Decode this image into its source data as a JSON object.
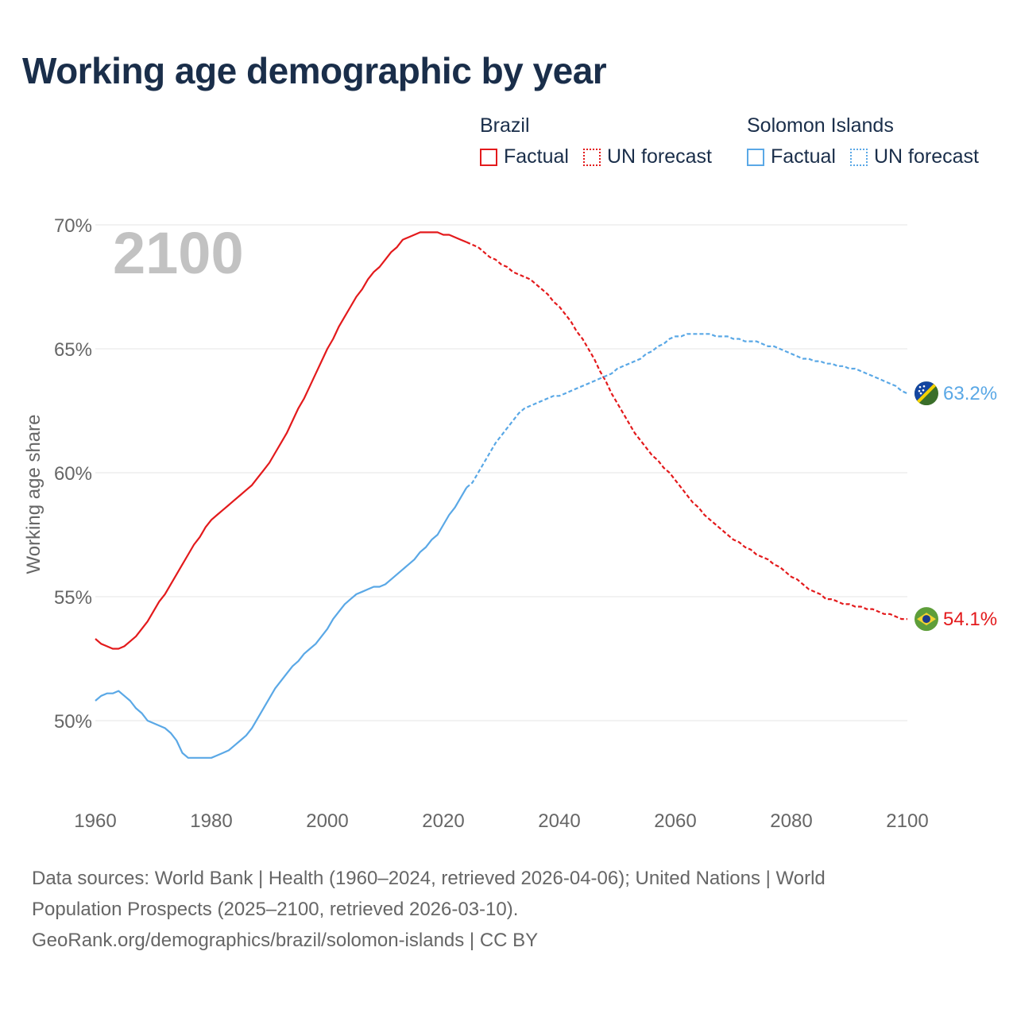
{
  "title": "Working age demographic by year",
  "chart_data": {
    "type": "line",
    "year_label": "2100",
    "ylabel": "Working age share",
    "xlim": [
      1960,
      2100
    ],
    "ylim": [
      47,
      71
    ],
    "y_ticks": [
      {
        "value": 50,
        "label": "50%"
      },
      {
        "value": 55,
        "label": "55%"
      },
      {
        "value": 60,
        "label": "60%"
      },
      {
        "value": 65,
        "label": "65%"
      },
      {
        "value": 70,
        "label": "70%"
      }
    ],
    "x_ticks": [
      {
        "value": 1960,
        "label": "1960"
      },
      {
        "value": 1980,
        "label": "1980"
      },
      {
        "value": 2000,
        "label": "2000"
      },
      {
        "value": 2020,
        "label": "2020"
      },
      {
        "value": 2040,
        "label": "2040"
      },
      {
        "value": 2060,
        "label": "2060"
      },
      {
        "value": 2080,
        "label": "2080"
      },
      {
        "value": 2100,
        "label": "2100"
      }
    ],
    "factual_end_year": 2024,
    "series": [
      {
        "name": "Brazil",
        "color": "#e31a1c",
        "end_label": "54.1%",
        "points": [
          [
            1960,
            53.3
          ],
          [
            1961,
            53.1
          ],
          [
            1962,
            53.0
          ],
          [
            1963,
            52.9
          ],
          [
            1964,
            52.9
          ],
          [
            1965,
            53.0
          ],
          [
            1966,
            53.2
          ],
          [
            1967,
            53.4
          ],
          [
            1968,
            53.7
          ],
          [
            1969,
            54.0
          ],
          [
            1970,
            54.4
          ],
          [
            1971,
            54.8
          ],
          [
            1972,
            55.1
          ],
          [
            1973,
            55.5
          ],
          [
            1974,
            55.9
          ],
          [
            1975,
            56.3
          ],
          [
            1976,
            56.7
          ],
          [
            1977,
            57.1
          ],
          [
            1978,
            57.4
          ],
          [
            1979,
            57.8
          ],
          [
            1980,
            58.1
          ],
          [
            1981,
            58.3
          ],
          [
            1982,
            58.5
          ],
          [
            1983,
            58.7
          ],
          [
            1984,
            58.9
          ],
          [
            1985,
            59.1
          ],
          [
            1986,
            59.3
          ],
          [
            1987,
            59.5
          ],
          [
            1988,
            59.8
          ],
          [
            1989,
            60.1
          ],
          [
            1990,
            60.4
          ],
          [
            1991,
            60.8
          ],
          [
            1992,
            61.2
          ],
          [
            1993,
            61.6
          ],
          [
            1994,
            62.1
          ],
          [
            1995,
            62.6
          ],
          [
            1996,
            63.0
          ],
          [
            1997,
            63.5
          ],
          [
            1998,
            64.0
          ],
          [
            1999,
            64.5
          ],
          [
            2000,
            65.0
          ],
          [
            2001,
            65.4
          ],
          [
            2002,
            65.9
          ],
          [
            2003,
            66.3
          ],
          [
            2004,
            66.7
          ],
          [
            2005,
            67.1
          ],
          [
            2006,
            67.4
          ],
          [
            2007,
            67.8
          ],
          [
            2008,
            68.1
          ],
          [
            2009,
            68.3
          ],
          [
            2010,
            68.6
          ],
          [
            2011,
            68.9
          ],
          [
            2012,
            69.1
          ],
          [
            2013,
            69.4
          ],
          [
            2014,
            69.5
          ],
          [
            2015,
            69.6
          ],
          [
            2016,
            69.7
          ],
          [
            2017,
            69.7
          ],
          [
            2018,
            69.7
          ],
          [
            2019,
            69.7
          ],
          [
            2020,
            69.6
          ],
          [
            2021,
            69.6
          ],
          [
            2022,
            69.5
          ],
          [
            2023,
            69.4
          ],
          [
            2024,
            69.3
          ],
          [
            2025,
            69.2
          ],
          [
            2026,
            69.1
          ],
          [
            2027,
            68.9
          ],
          [
            2028,
            68.7
          ],
          [
            2029,
            68.6
          ],
          [
            2030,
            68.4
          ],
          [
            2031,
            68.3
          ],
          [
            2032,
            68.1
          ],
          [
            2033,
            68.0
          ],
          [
            2034,
            67.9
          ],
          [
            2035,
            67.8
          ],
          [
            2036,
            67.6
          ],
          [
            2037,
            67.4
          ],
          [
            2038,
            67.2
          ],
          [
            2039,
            66.9
          ],
          [
            2040,
            66.7
          ],
          [
            2041,
            66.4
          ],
          [
            2042,
            66.1
          ],
          [
            2043,
            65.7
          ],
          [
            2044,
            65.4
          ],
          [
            2045,
            65.0
          ],
          [
            2046,
            64.6
          ],
          [
            2047,
            64.1
          ],
          [
            2048,
            63.7
          ],
          [
            2049,
            63.2
          ],
          [
            2050,
            62.8
          ],
          [
            2051,
            62.4
          ],
          [
            2052,
            62.0
          ],
          [
            2053,
            61.6
          ],
          [
            2054,
            61.3
          ],
          [
            2055,
            61.0
          ],
          [
            2056,
            60.7
          ],
          [
            2057,
            60.5
          ],
          [
            2058,
            60.2
          ],
          [
            2059,
            60.0
          ],
          [
            2060,
            59.7
          ],
          [
            2061,
            59.4
          ],
          [
            2062,
            59.1
          ],
          [
            2063,
            58.8
          ],
          [
            2064,
            58.6
          ],
          [
            2065,
            58.3
          ],
          [
            2066,
            58.1
          ],
          [
            2067,
            57.9
          ],
          [
            2068,
            57.7
          ],
          [
            2069,
            57.5
          ],
          [
            2070,
            57.3
          ],
          [
            2071,
            57.2
          ],
          [
            2072,
            57.0
          ],
          [
            2073,
            56.9
          ],
          [
            2074,
            56.7
          ],
          [
            2075,
            56.6
          ],
          [
            2076,
            56.5
          ],
          [
            2077,
            56.3
          ],
          [
            2078,
            56.2
          ],
          [
            2079,
            56.0
          ],
          [
            2080,
            55.8
          ],
          [
            2081,
            55.7
          ],
          [
            2082,
            55.5
          ],
          [
            2083,
            55.3
          ],
          [
            2084,
            55.2
          ],
          [
            2085,
            55.1
          ],
          [
            2086,
            54.9
          ],
          [
            2087,
            54.9
          ],
          [
            2088,
            54.8
          ],
          [
            2089,
            54.7
          ],
          [
            2090,
            54.7
          ],
          [
            2091,
            54.6
          ],
          [
            2092,
            54.6
          ],
          [
            2093,
            54.5
          ],
          [
            2094,
            54.5
          ],
          [
            2095,
            54.4
          ],
          [
            2096,
            54.3
          ],
          [
            2097,
            54.3
          ],
          [
            2098,
            54.2
          ],
          [
            2099,
            54.1
          ],
          [
            2100,
            54.1
          ]
        ]
      },
      {
        "name": "Solomon Islands",
        "color": "#5aa8e6",
        "end_label": "63.2%",
        "points": [
          [
            1960,
            50.8
          ],
          [
            1961,
            51.0
          ],
          [
            1962,
            51.1
          ],
          [
            1963,
            51.1
          ],
          [
            1964,
            51.2
          ],
          [
            1965,
            51.0
          ],
          [
            1966,
            50.8
          ],
          [
            1967,
            50.5
          ],
          [
            1968,
            50.3
          ],
          [
            1969,
            50.0
          ],
          [
            1970,
            49.9
          ],
          [
            1971,
            49.8
          ],
          [
            1972,
            49.7
          ],
          [
            1973,
            49.5
          ],
          [
            1974,
            49.2
          ],
          [
            1975,
            48.7
          ],
          [
            1976,
            48.5
          ],
          [
            1977,
            48.5
          ],
          [
            1978,
            48.5
          ],
          [
            1979,
            48.5
          ],
          [
            1980,
            48.5
          ],
          [
            1981,
            48.6
          ],
          [
            1982,
            48.7
          ],
          [
            1983,
            48.8
          ],
          [
            1984,
            49.0
          ],
          [
            1985,
            49.2
          ],
          [
            1986,
            49.4
          ],
          [
            1987,
            49.7
          ],
          [
            1988,
            50.1
          ],
          [
            1989,
            50.5
          ],
          [
            1990,
            50.9
          ],
          [
            1991,
            51.3
          ],
          [
            1992,
            51.6
          ],
          [
            1993,
            51.9
          ],
          [
            1994,
            52.2
          ],
          [
            1995,
            52.4
          ],
          [
            1996,
            52.7
          ],
          [
            1997,
            52.9
          ],
          [
            1998,
            53.1
          ],
          [
            1999,
            53.4
          ],
          [
            2000,
            53.7
          ],
          [
            2001,
            54.1
          ],
          [
            2002,
            54.4
          ],
          [
            2003,
            54.7
          ],
          [
            2004,
            54.9
          ],
          [
            2005,
            55.1
          ],
          [
            2006,
            55.2
          ],
          [
            2007,
            55.3
          ],
          [
            2008,
            55.4
          ],
          [
            2009,
            55.4
          ],
          [
            2010,
            55.5
          ],
          [
            2011,
            55.7
          ],
          [
            2012,
            55.9
          ],
          [
            2013,
            56.1
          ],
          [
            2014,
            56.3
          ],
          [
            2015,
            56.5
          ],
          [
            2016,
            56.8
          ],
          [
            2017,
            57.0
          ],
          [
            2018,
            57.3
          ],
          [
            2019,
            57.5
          ],
          [
            2020,
            57.9
          ],
          [
            2021,
            58.3
          ],
          [
            2022,
            58.6
          ],
          [
            2023,
            59.0
          ],
          [
            2024,
            59.4
          ],
          [
            2025,
            59.6
          ],
          [
            2026,
            60.0
          ],
          [
            2027,
            60.4
          ],
          [
            2028,
            60.8
          ],
          [
            2029,
            61.2
          ],
          [
            2030,
            61.5
          ],
          [
            2031,
            61.8
          ],
          [
            2032,
            62.1
          ],
          [
            2033,
            62.4
          ],
          [
            2034,
            62.6
          ],
          [
            2035,
            62.7
          ],
          [
            2036,
            62.8
          ],
          [
            2037,
            62.9
          ],
          [
            2038,
            63.0
          ],
          [
            2039,
            63.1
          ],
          [
            2040,
            63.1
          ],
          [
            2041,
            63.2
          ],
          [
            2042,
            63.3
          ],
          [
            2043,
            63.4
          ],
          [
            2044,
            63.5
          ],
          [
            2045,
            63.6
          ],
          [
            2046,
            63.7
          ],
          [
            2047,
            63.8
          ],
          [
            2048,
            63.9
          ],
          [
            2049,
            64.0
          ],
          [
            2050,
            64.2
          ],
          [
            2051,
            64.3
          ],
          [
            2052,
            64.4
          ],
          [
            2053,
            64.5
          ],
          [
            2054,
            64.6
          ],
          [
            2055,
            64.8
          ],
          [
            2056,
            64.9
          ],
          [
            2057,
            65.1
          ],
          [
            2058,
            65.2
          ],
          [
            2059,
            65.4
          ],
          [
            2060,
            65.5
          ],
          [
            2061,
            65.5
          ],
          [
            2062,
            65.6
          ],
          [
            2063,
            65.6
          ],
          [
            2064,
            65.6
          ],
          [
            2065,
            65.6
          ],
          [
            2066,
            65.6
          ],
          [
            2067,
            65.5
          ],
          [
            2068,
            65.5
          ],
          [
            2069,
            65.5
          ],
          [
            2070,
            65.4
          ],
          [
            2071,
            65.4
          ],
          [
            2072,
            65.3
          ],
          [
            2073,
            65.3
          ],
          [
            2074,
            65.3
          ],
          [
            2075,
            65.2
          ],
          [
            2076,
            65.1
          ],
          [
            2077,
            65.1
          ],
          [
            2078,
            65.0
          ],
          [
            2079,
            64.9
          ],
          [
            2080,
            64.8
          ],
          [
            2081,
            64.7
          ],
          [
            2082,
            64.6
          ],
          [
            2083,
            64.6
          ],
          [
            2084,
            64.5
          ],
          [
            2085,
            64.5
          ],
          [
            2086,
            64.4
          ],
          [
            2087,
            64.4
          ],
          [
            2088,
            64.3
          ],
          [
            2089,
            64.3
          ],
          [
            2090,
            64.2
          ],
          [
            2091,
            64.2
          ],
          [
            2092,
            64.1
          ],
          [
            2093,
            64.0
          ],
          [
            2094,
            63.9
          ],
          [
            2095,
            63.8
          ],
          [
            2096,
            63.7
          ],
          [
            2097,
            63.6
          ],
          [
            2098,
            63.5
          ],
          [
            2099,
            63.3
          ],
          [
            2100,
            63.2
          ]
        ]
      }
    ],
    "legend": {
      "groups": [
        {
          "name": "Brazil",
          "color": "#e31a1c",
          "factual_label": "Factual",
          "forecast_label": "UN forecast"
        },
        {
          "name": "Solomon Islands",
          "color": "#5aa8e6",
          "factual_label": "Factual",
          "forecast_label": "UN forecast"
        }
      ]
    },
    "flags": {
      "brazil": {
        "green": "#5e9e3a",
        "yellow": "#f2d230",
        "blue": "#1b3a8c"
      },
      "solomon_islands": {
        "blue": "#1446a0",
        "green": "#3a6e2a",
        "yellow": "#f5d200",
        "white": "#ffffff"
      }
    }
  },
  "footer": {
    "line1": "Data sources: World Bank | Health (1960–2024, retrieved 2026-04-06); United Nations | World",
    "line2": "Population Prospects (2025–2100, retrieved 2026-03-10).",
    "line3": "GeoRank.org/demographics/brazil/solomon-islands | CC BY"
  }
}
